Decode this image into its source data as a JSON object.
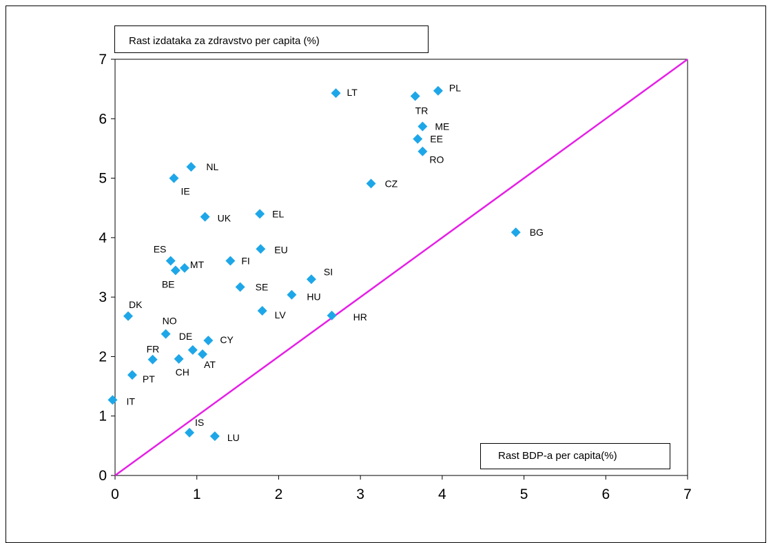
{
  "chart_data": {
    "type": "scatter",
    "ylabel": "Rast izdataka za zdravstvo per capita (%)",
    "xlabel": "Rast BDP-a per capita(%)",
    "xlim": [
      0,
      7
    ],
    "ylim": [
      0,
      7
    ],
    "xticks": [
      "0",
      "1",
      "2",
      "3",
      "4",
      "5",
      "6",
      "7"
    ],
    "yticks": [
      "0",
      "1",
      "2",
      "3",
      "4",
      "5",
      "6",
      "7"
    ],
    "grid": false,
    "marker_color": "#1ea7e8",
    "reference_line": {
      "from": [
        0,
        0
      ],
      "to": [
        7,
        7
      ],
      "color": "#e61ee6"
    },
    "points": [
      {
        "label": "LT",
        "x": 2.7,
        "y": 6.43
      },
      {
        "label": "PL",
        "x": 3.95,
        "y": 6.47
      },
      {
        "label": "TR",
        "x": 3.67,
        "y": 6.38
      },
      {
        "label": "ME",
        "x": 3.76,
        "y": 5.87
      },
      {
        "label": "EE",
        "x": 3.7,
        "y": 5.66
      },
      {
        "label": "RO",
        "x": 3.76,
        "y": 5.45
      },
      {
        "label": "CZ",
        "x": 3.13,
        "y": 4.91
      },
      {
        "label": "NL",
        "x": 0.93,
        "y": 5.19
      },
      {
        "label": "IE",
        "x": 0.72,
        "y": 5.0
      },
      {
        "label": "UK",
        "x": 1.1,
        "y": 4.35
      },
      {
        "label": "EL",
        "x": 1.77,
        "y": 4.4
      },
      {
        "label": "BG",
        "x": 4.9,
        "y": 4.09
      },
      {
        "label": "EU",
        "x": 1.78,
        "y": 3.81
      },
      {
        "label": "ES",
        "x": 0.68,
        "y": 3.61
      },
      {
        "label": "MT",
        "x": 0.85,
        "y": 3.49
      },
      {
        "label": "BE",
        "x": 0.74,
        "y": 3.45
      },
      {
        "label": "FI",
        "x": 1.41,
        "y": 3.61
      },
      {
        "label": "SI",
        "x": 2.4,
        "y": 3.3
      },
      {
        "label": "SE",
        "x": 1.53,
        "y": 3.17
      },
      {
        "label": "HU",
        "x": 2.16,
        "y": 3.04
      },
      {
        "label": "DK",
        "x": 0.16,
        "y": 2.68
      },
      {
        "label": "LV",
        "x": 1.8,
        "y": 2.77
      },
      {
        "label": "HR",
        "x": 2.65,
        "y": 2.69
      },
      {
        "label": "NO",
        "x": 0.62,
        "y": 2.38
      },
      {
        "label": "CY",
        "x": 1.14,
        "y": 2.27
      },
      {
        "label": "DE",
        "x": 0.95,
        "y": 2.11
      },
      {
        "label": "AT",
        "x": 1.07,
        "y": 2.04
      },
      {
        "label": "FR",
        "x": 0.46,
        "y": 1.95
      },
      {
        "label": "CH",
        "x": 0.78,
        "y": 1.96
      },
      {
        "label": "PT",
        "x": 0.21,
        "y": 1.69
      },
      {
        "label": "IT",
        "x": -0.03,
        "y": 1.27
      },
      {
        "label": "IS",
        "x": 0.91,
        "y": 0.72
      },
      {
        "label": "LU",
        "x": 1.22,
        "y": 0.66
      }
    ]
  }
}
